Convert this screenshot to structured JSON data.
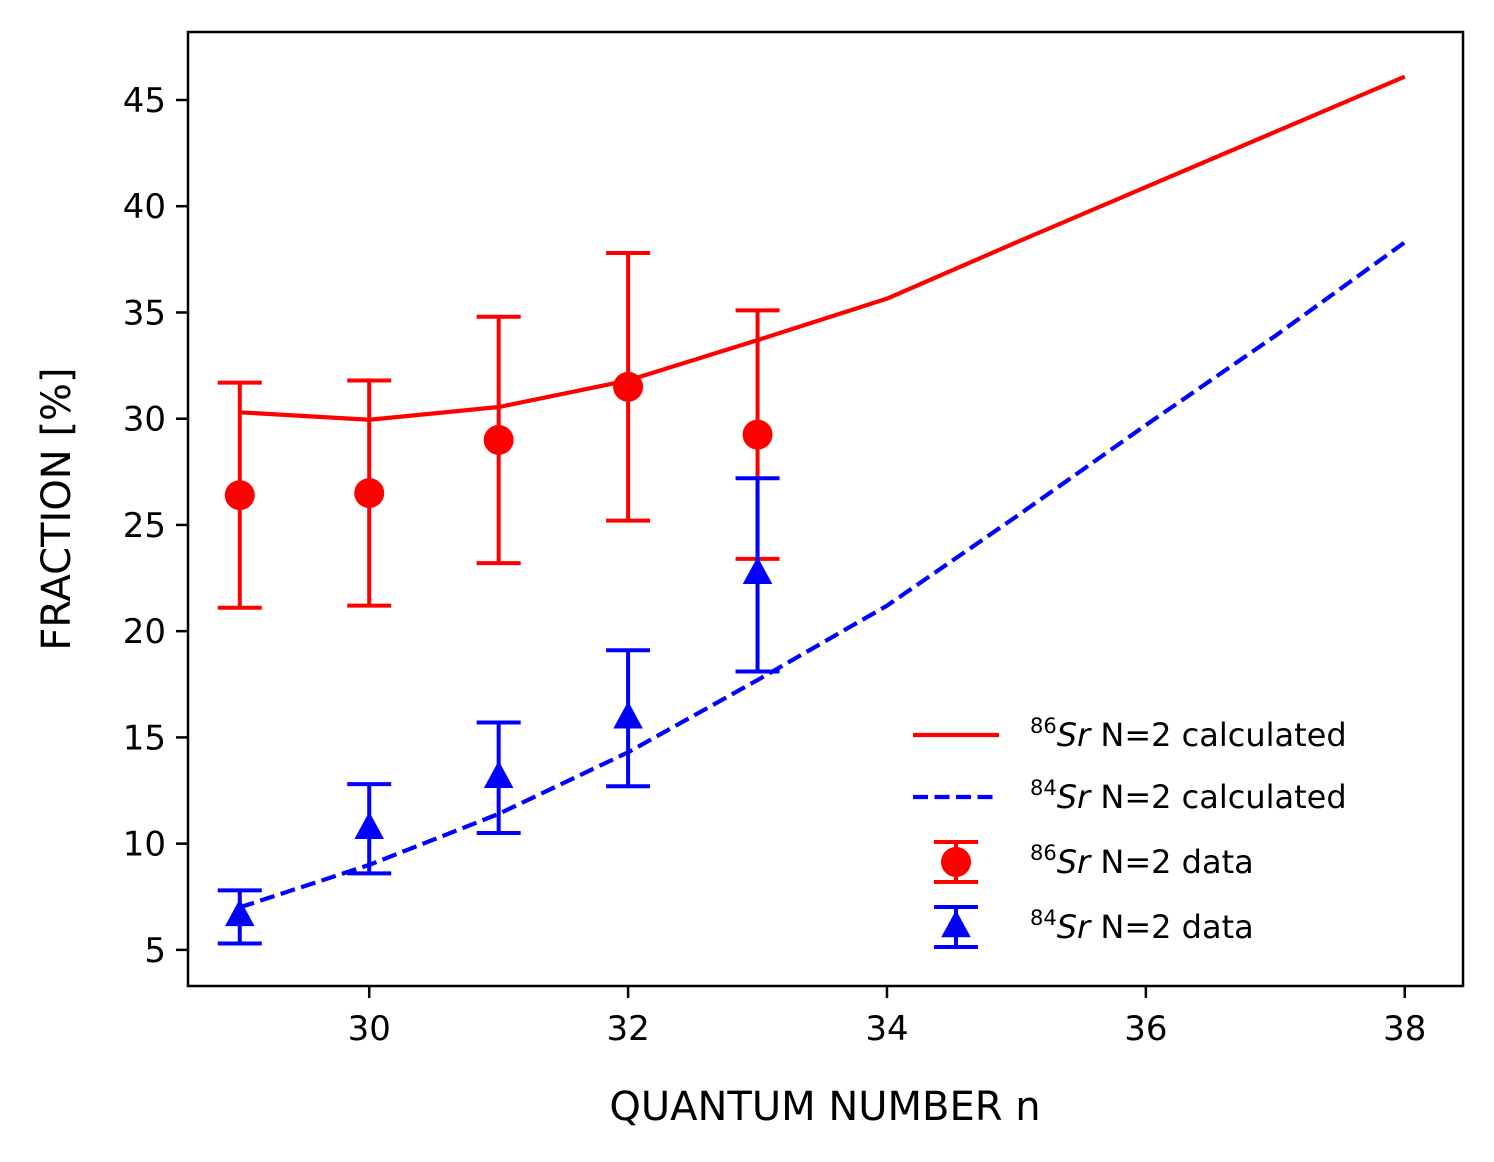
{
  "chart_data": {
    "type": "line",
    "xlabel": "QUANTUM NUMBER n",
    "ylabel": "FRACTION [%]",
    "xlim": [
      28.6,
      38.45
    ],
    "ylim": [
      3.3,
      48.2
    ],
    "xticks": [
      30,
      32,
      34,
      36,
      38
    ],
    "yticks": [
      5,
      10,
      15,
      20,
      25,
      30,
      35,
      40,
      45
    ],
    "series": [
      {
        "id": "sr86-calc",
        "kind": "line",
        "style": "solid",
        "color": "#ff0000",
        "isotope": "86",
        "legend_rest": " N=2 calculated",
        "x": [
          29,
          30,
          31,
          32,
          33,
          34,
          35,
          36,
          37,
          38
        ],
        "y": [
          30.3,
          29.95,
          30.55,
          31.8,
          33.7,
          35.65,
          38.3,
          40.9,
          43.5,
          46.1
        ]
      },
      {
        "id": "sr84-calc",
        "kind": "line",
        "style": "dashed",
        "color": "#0000ff",
        "isotope": "84",
        "legend_rest": " N=2 calculated",
        "x": [
          29,
          30,
          31,
          32,
          33,
          34,
          35,
          36,
          37,
          38
        ],
        "y": [
          7.0,
          9.0,
          11.4,
          14.3,
          17.7,
          21.2,
          25.4,
          29.7,
          33.9,
          38.3
        ]
      },
      {
        "id": "sr86-data",
        "kind": "errorbar",
        "marker": "circle",
        "color": "#ff0000",
        "isotope": "86",
        "legend_rest": " N=2 data",
        "x": [
          29,
          30,
          31,
          32,
          33
        ],
        "y": [
          26.4,
          26.5,
          29.0,
          31.5,
          29.25
        ],
        "yerr_low": [
          21.1,
          21.2,
          23.2,
          25.2,
          23.4
        ],
        "yerr_high": [
          31.7,
          31.8,
          34.8,
          37.8,
          35.1
        ]
      },
      {
        "id": "sr84-data",
        "kind": "errorbar",
        "marker": "triangle",
        "color": "#0000ff",
        "isotope": "84",
        "legend_rest": " N=2 data",
        "x": [
          29,
          30,
          31,
          32,
          33
        ],
        "y": [
          6.6,
          10.7,
          13.1,
          15.9,
          22.7
        ],
        "yerr_low": [
          5.3,
          8.6,
          10.5,
          12.7,
          18.1
        ],
        "yerr_high": [
          7.8,
          12.8,
          15.7,
          19.1,
          27.2
        ]
      }
    ],
    "legend": {
      "position": "lower-right",
      "element": "Sr",
      "order": [
        "sr86-calc",
        "sr84-calc",
        "sr86-data",
        "sr84-data"
      ]
    }
  }
}
